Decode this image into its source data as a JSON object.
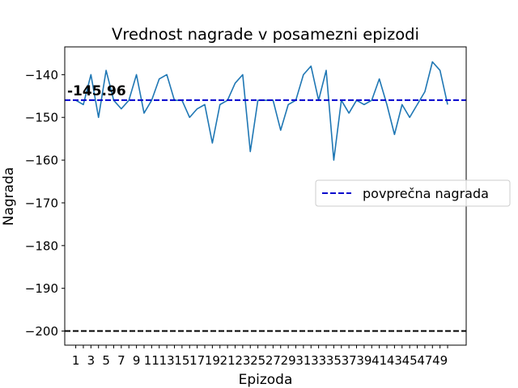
{
  "chart_data": {
    "type": "line",
    "title": "Vrednost nagrade v posamezni epizodi",
    "xlabel": "Epizoda",
    "ylabel": "Nagrada",
    "xlim": [
      -0.45,
      52.45
    ],
    "ylim": [
      -203.3,
      -133.5
    ],
    "x": [
      1,
      2,
      3,
      4,
      5,
      6,
      7,
      8,
      9,
      10,
      11,
      12,
      13,
      14,
      15,
      16,
      17,
      18,
      19,
      20,
      21,
      22,
      23,
      24,
      25,
      26,
      27,
      28,
      29,
      30,
      31,
      32,
      33,
      34,
      35,
      36,
      37,
      38,
      39,
      40,
      41,
      42,
      43,
      44,
      45,
      46,
      47,
      48,
      49,
      50
    ],
    "x_tick_labels": [
      "1",
      "3",
      "5",
      "7",
      "9",
      "11",
      "13",
      "15",
      "17",
      "19",
      "21",
      "23",
      "25",
      "27",
      "29",
      "31",
      "33",
      "35",
      "37",
      "39",
      "41",
      "43",
      "45",
      "47",
      "49"
    ],
    "y_ticks": [
      -140,
      -150,
      -160,
      -170,
      -180,
      -190,
      -200
    ],
    "y_tick_labels": [
      "−140",
      "−150",
      "−160",
      "−170",
      "−180",
      "−190",
      "−200"
    ],
    "series": [
      {
        "color": "#1f77b4",
        "values": [
          -146,
          -147,
          -140,
          -150,
          -139,
          -146,
          -148,
          -146,
          -140,
          -149,
          -146,
          -141,
          -140,
          -146,
          -146,
          -150,
          -148,
          -147,
          -156,
          -147,
          -146,
          -142,
          -140,
          -158,
          -146,
          -146,
          -146,
          -153,
          -147,
          -146,
          -140,
          -138,
          -146,
          -139,
          -160,
          -146,
          -149,
          -146,
          -147,
          -146,
          -141,
          -147,
          -154,
          -147,
          -150,
          -147,
          -144,
          -137,
          -139,
          -147
        ]
      }
    ],
    "average": {
      "value": -145.96,
      "label": "-145.96",
      "legend": "povprečna nagrada",
      "color": "#0000cd"
    },
    "baseline": {
      "value": -200,
      "color": "#000000"
    },
    "legend_position": "center-right",
    "grid": false
  }
}
